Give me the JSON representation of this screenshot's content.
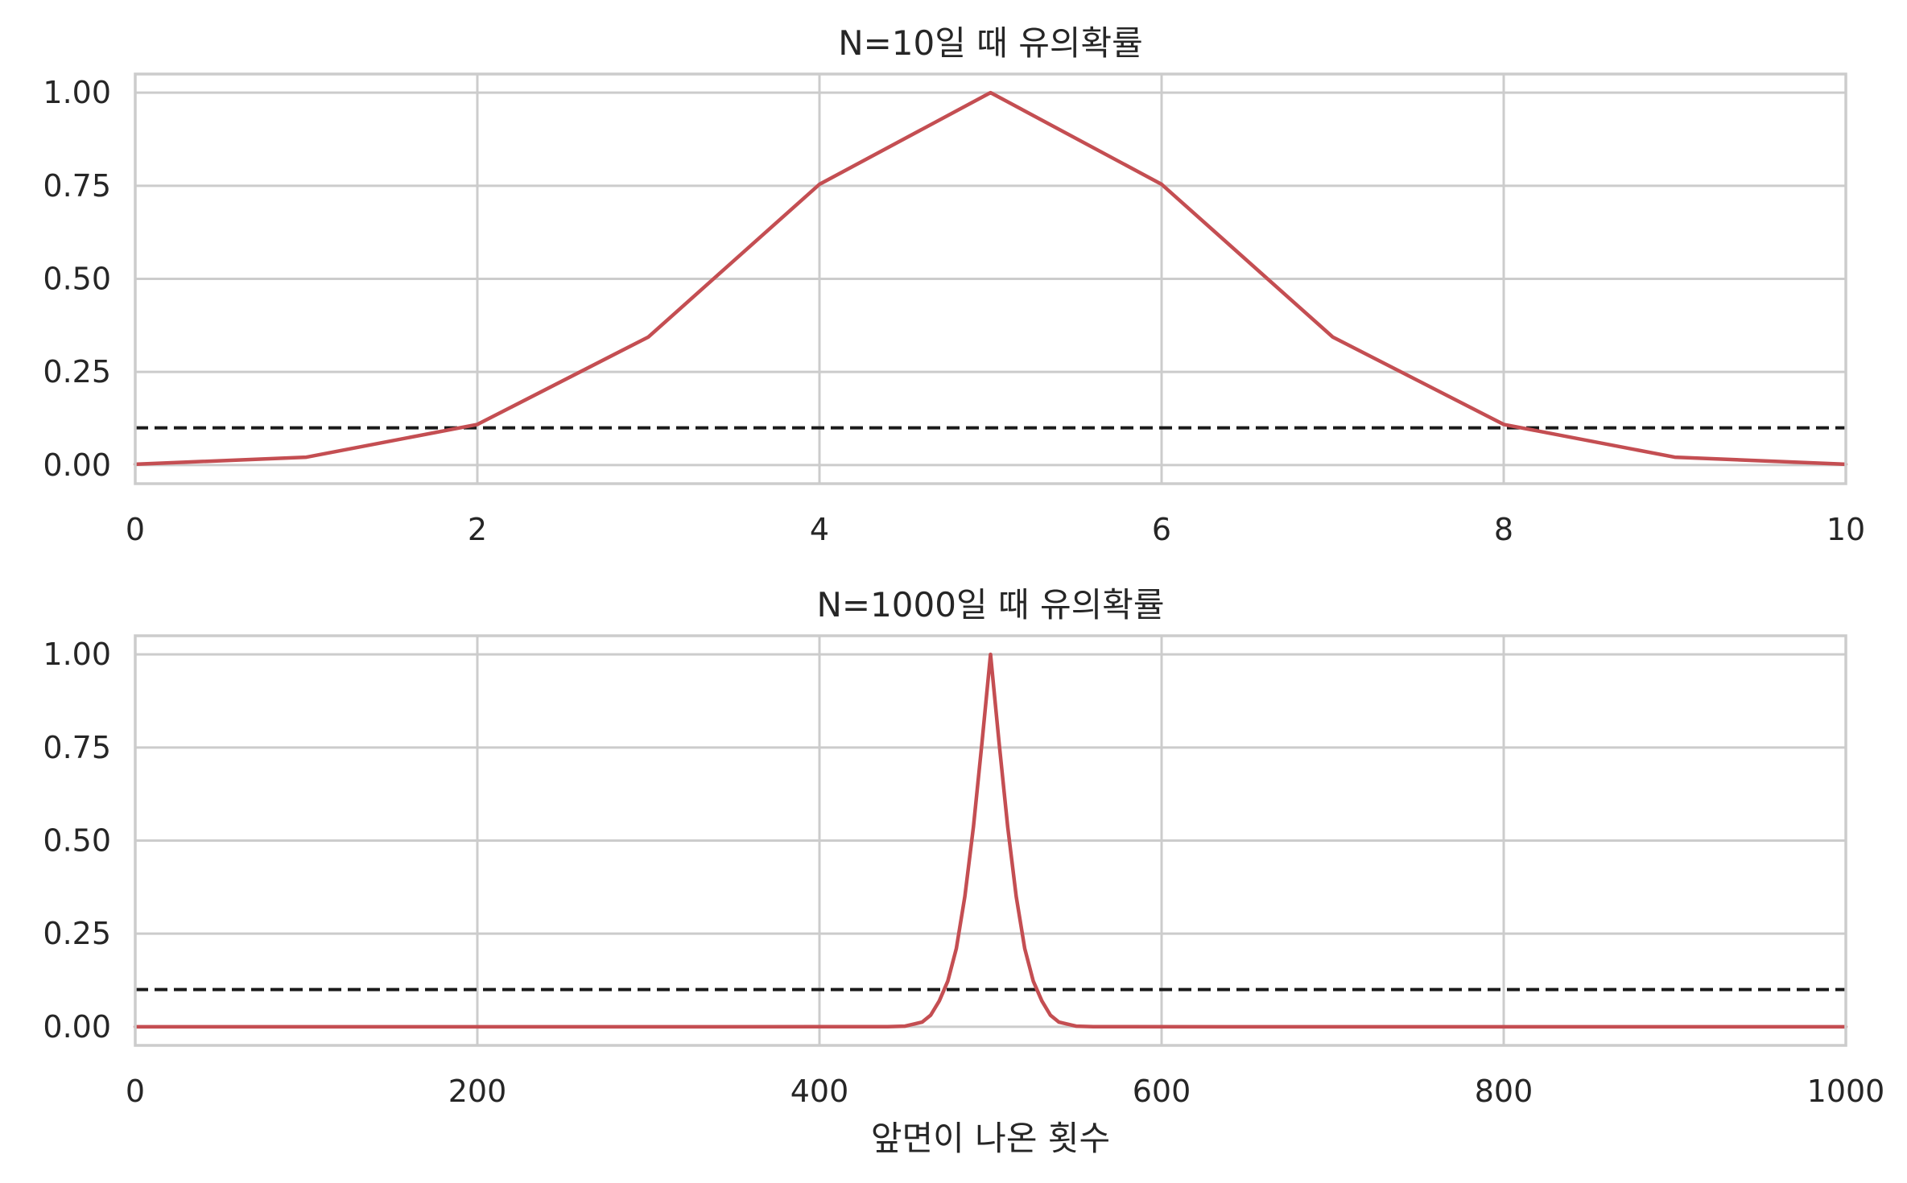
{
  "colors": {
    "line": "#c44e52",
    "threshold": "#1a1a1a",
    "grid": "#cccccc",
    "spine": "#cccccc",
    "text": "#262626",
    "background": "#ffffff"
  },
  "chart_data": [
    {
      "type": "line",
      "title": "N=10일 때 유의확률",
      "xlabel": "",
      "ylabel": "",
      "xlim": [
        0,
        10
      ],
      "ylim": [
        -0.05,
        1.05
      ],
      "xticks": [
        0,
        2,
        4,
        6,
        8,
        10
      ],
      "xtick_labels": [
        "0",
        "2",
        "4",
        "6",
        "8",
        "10"
      ],
      "yticks": [
        0,
        0.25,
        0.5,
        0.75,
        1.0
      ],
      "ytick_labels": [
        "0.00",
        "0.25",
        "0.50",
        "0.75",
        "1.00"
      ],
      "grid": true,
      "threshold": {
        "value": 0.1,
        "style": "dashed"
      },
      "series": [
        {
          "x": [
            0,
            1,
            2,
            3,
            4,
            5,
            6,
            7,
            8,
            9,
            10
          ],
          "values": [
            0.002,
            0.021,
            0.109,
            0.344,
            0.754,
            1.0,
            0.754,
            0.344,
            0.109,
            0.021,
            0.002
          ]
        }
      ]
    },
    {
      "type": "line",
      "title": "N=1000일 때 유의확률",
      "xlabel": "앞면이 나온 횟수",
      "ylabel": "",
      "xlim": [
        0,
        1000
      ],
      "ylim": [
        -0.05,
        1.05
      ],
      "xticks": [
        0,
        200,
        400,
        600,
        800,
        1000
      ],
      "xtick_labels": [
        "0",
        "200",
        "400",
        "600",
        "800",
        "1000"
      ],
      "yticks": [
        0,
        0.25,
        0.5,
        0.75,
        1.0
      ],
      "ytick_labels": [
        "0.00",
        "0.25",
        "0.50",
        "0.75",
        "1.00"
      ],
      "grid": true,
      "threshold": {
        "value": 0.1,
        "style": "dashed"
      },
      "series": [
        {
          "x": [
            0,
            440,
            450,
            460,
            465,
            470,
            475,
            480,
            485,
            490,
            495,
            500,
            505,
            510,
            515,
            520,
            525,
            530,
            535,
            540,
            550,
            560,
            1000
          ],
          "values": [
            0.0,
            0.0002,
            0.0016,
            0.0124,
            0.031,
            0.0693,
            0.1224,
            0.21,
            0.3498,
            0.5376,
            0.7633,
            1.0,
            0.7633,
            0.5376,
            0.3498,
            0.21,
            0.1224,
            0.0693,
            0.031,
            0.0124,
            0.0016,
            0.0002,
            0.0
          ]
        }
      ]
    }
  ]
}
